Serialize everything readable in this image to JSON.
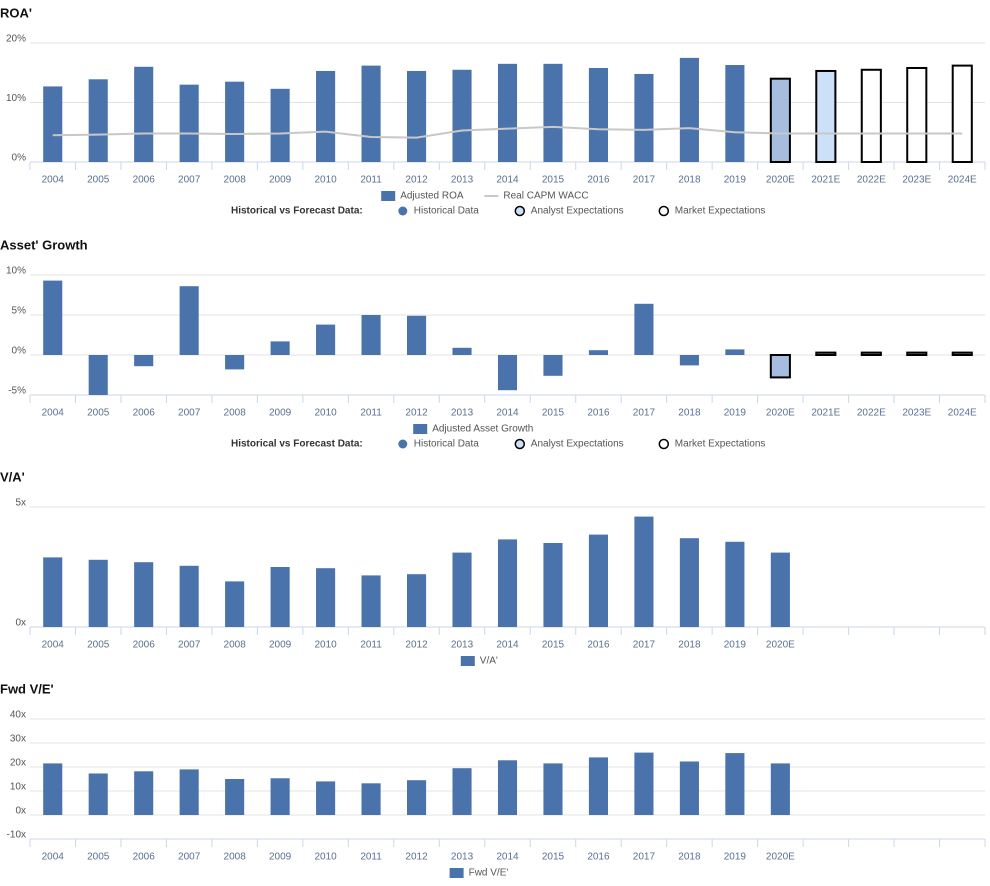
{
  "chart_data": [
    {
      "type": "bar",
      "title": "ROA'",
      "categories": [
        "2004",
        "2005",
        "2006",
        "2007",
        "2008",
        "2009",
        "2010",
        "2011",
        "2012",
        "2013",
        "2014",
        "2015",
        "2016",
        "2017",
        "2018",
        "2019",
        "2020E",
        "2021E",
        "2022E",
        "2023E",
        "2024E"
      ],
      "series": [
        {
          "name": "Adjusted ROA",
          "type": "bar",
          "color": "#4a72ab",
          "colors": [
            "#4a72ab",
            "#4a72ab",
            "#4a72ab",
            "#4a72ab",
            "#4a72ab",
            "#4a72ab",
            "#4a72ab",
            "#4a72ab",
            "#4a72ab",
            "#4a72ab",
            "#4a72ab",
            "#4a72ab",
            "#4a72ab",
            "#4a72ab",
            "#4a72ab",
            "#4a72ab",
            "#a6bde0",
            "#cce0f7",
            "#ffffff",
            "#ffffff",
            "#ffffff"
          ],
          "edgecolors": [
            null,
            null,
            null,
            null,
            null,
            null,
            null,
            null,
            null,
            null,
            null,
            null,
            null,
            null,
            null,
            null,
            "#000000",
            "#000000",
            "#000000",
            "#000000",
            "#000000"
          ],
          "values": [
            12.7,
            13.9,
            16.0,
            13.0,
            13.5,
            12.3,
            15.3,
            16.2,
            15.3,
            15.5,
            16.5,
            16.5,
            15.8,
            14.8,
            17.5,
            16.3,
            14.0,
            15.3,
            15.5,
            15.8,
            16.2
          ]
        },
        {
          "name": "Real CAPM WACC",
          "type": "line",
          "color": "#c8c8c8",
          "values": [
            4.5,
            4.6,
            4.8,
            4.8,
            4.7,
            4.8,
            5.1,
            4.2,
            4.1,
            5.3,
            5.6,
            5.9,
            5.5,
            5.4,
            5.7,
            5.0,
            4.8,
            4.8,
            4.8,
            4.8,
            4.8
          ]
        }
      ],
      "ylim": [
        0,
        20
      ],
      "yticks": [
        {
          "value": 0,
          "label": "0%"
        },
        {
          "value": 10,
          "label": "10%"
        },
        {
          "value": 20,
          "label": "20%"
        }
      ],
      "grid": true,
      "forecast_legend": {
        "title": "Historical vs Forecast Data:",
        "items": [
          {
            "name": "Historical Data",
            "color": "#4a72ab",
            "edgecolor": null
          },
          {
            "name": "Analyst Expectations",
            "color": "#cce0f7",
            "edgecolor": "#000000"
          },
          {
            "name": "Market Expectations",
            "color": "#ffffff",
            "edgecolor": "#000000"
          }
        ]
      }
    },
    {
      "type": "bar",
      "title": "Asset' Growth",
      "categories": [
        "2004",
        "2005",
        "2006",
        "2007",
        "2008",
        "2009",
        "2010",
        "2011",
        "2012",
        "2013",
        "2014",
        "2015",
        "2016",
        "2017",
        "2018",
        "2019",
        "2020E",
        "2021E",
        "2022E",
        "2023E",
        "2024E"
      ],
      "series": [
        {
          "name": "Adjusted Asset Growth",
          "type": "bar",
          "color": "#4a72ab",
          "colors": [
            "#4a72ab",
            "#4a72ab",
            "#4a72ab",
            "#4a72ab",
            "#4a72ab",
            "#4a72ab",
            "#4a72ab",
            "#4a72ab",
            "#4a72ab",
            "#4a72ab",
            "#4a72ab",
            "#4a72ab",
            "#4a72ab",
            "#4a72ab",
            "#4a72ab",
            "#4a72ab",
            "#a6bde0",
            "#999999",
            "#999999",
            "#999999",
            "#999999"
          ],
          "edgecolors": [
            null,
            null,
            null,
            null,
            null,
            null,
            null,
            null,
            null,
            null,
            null,
            null,
            null,
            null,
            null,
            null,
            "#000000",
            "#000000",
            "#000000",
            "#000000",
            "#000000"
          ],
          "values": [
            9.3,
            -5.0,
            -1.4,
            8.6,
            -1.8,
            1.7,
            3.8,
            5.0,
            4.9,
            0.9,
            -4.4,
            -2.6,
            0.6,
            6.4,
            -1.3,
            0.7,
            -2.8,
            0.3,
            0.3,
            0.3,
            0.3
          ]
        }
      ],
      "ylim": [
        -5,
        10
      ],
      "yticks": [
        {
          "value": -5,
          "label": "-5%"
        },
        {
          "value": 0,
          "label": "0%"
        },
        {
          "value": 5,
          "label": "5%"
        },
        {
          "value": 10,
          "label": "10%"
        }
      ],
      "grid": true,
      "forecast_legend": {
        "title": "Historical vs Forecast Data:",
        "items": [
          {
            "name": "Historical Data",
            "color": "#4a72ab",
            "edgecolor": null
          },
          {
            "name": "Analyst Expectations",
            "color": "#cce0f7",
            "edgecolor": "#000000"
          },
          {
            "name": "Market Expectations",
            "color": "#ffffff",
            "edgecolor": "#000000"
          }
        ]
      }
    },
    {
      "type": "bar",
      "title": "V/A'",
      "categories": [
        "2004",
        "2005",
        "2006",
        "2007",
        "2008",
        "2009",
        "2010",
        "2011",
        "2012",
        "2013",
        "2014",
        "2015",
        "2016",
        "2017",
        "2018",
        "2019",
        "2020E",
        null,
        null,
        null,
        null
      ],
      "series": [
        {
          "name": "V/A'",
          "type": "bar",
          "color": "#4a72ab",
          "values": [
            2.9,
            2.8,
            2.7,
            2.55,
            1.9,
            2.5,
            2.45,
            2.15,
            2.2,
            3.1,
            3.65,
            3.5,
            3.85,
            4.6,
            3.7,
            3.55,
            3.1,
            null,
            null,
            null,
            null
          ]
        }
      ],
      "ylim": [
        0,
        5
      ],
      "yticks": [
        {
          "value": 0,
          "label": "0x"
        },
        {
          "value": 5,
          "label": "5x"
        }
      ],
      "grid": true
    },
    {
      "type": "bar",
      "title": "Fwd V/E'",
      "categories": [
        "2004",
        "2005",
        "2006",
        "2007",
        "2008",
        "2009",
        "2010",
        "2011",
        "2012",
        "2013",
        "2014",
        "2015",
        "2016",
        "2017",
        "2018",
        "2019",
        "2020E",
        null,
        null,
        null,
        null
      ],
      "series": [
        {
          "name": "Fwd V/E'",
          "type": "bar",
          "color": "#4a72ab",
          "values": [
            21.5,
            17.3,
            18.2,
            19.0,
            15.0,
            15.3,
            14.0,
            13.2,
            14.5,
            19.5,
            22.8,
            21.5,
            24.0,
            26.0,
            22.3,
            25.8,
            21.5,
            null,
            null,
            null,
            null
          ]
        }
      ],
      "ylim": [
        -10,
        40
      ],
      "yticks": [
        {
          "value": -10,
          "label": "-10x"
        },
        {
          "value": 0,
          "label": "0x"
        },
        {
          "value": 10,
          "label": "10x"
        },
        {
          "value": 20,
          "label": "20x"
        },
        {
          "value": 30,
          "label": "30x"
        },
        {
          "value": 40,
          "label": "40x"
        }
      ],
      "grid": true
    }
  ]
}
